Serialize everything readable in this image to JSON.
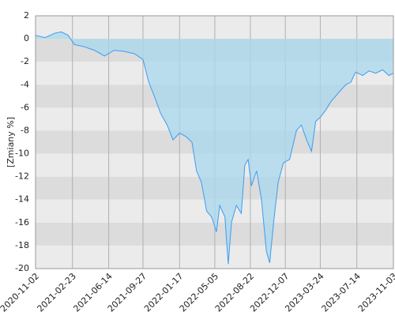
{
  "chart_data": {
    "type": "area",
    "y_label": "[Zmiany %]",
    "color": "#3f9bef",
    "fill": "#a8d8ee",
    "x": [
      "2020-11-02",
      "2020-12-01",
      "2021-01-01",
      "2021-01-20",
      "2021-02-10",
      "2021-03-01",
      "2021-04-01",
      "2021-05-01",
      "2021-06-01",
      "2021-07-01",
      "2021-08-01",
      "2021-09-01",
      "2021-09-27",
      "2021-10-15",
      "2021-11-01",
      "2021-11-20",
      "2021-12-10",
      "2021-12-28",
      "2022-01-17",
      "2022-02-05",
      "2022-02-24",
      "2022-03-10",
      "2022-03-25",
      "2022-04-10",
      "2022-04-25",
      "2022-05-10",
      "2022-05-20",
      "2022-06-05",
      "2022-06-15",
      "2022-06-25",
      "2022-07-10",
      "2022-07-25",
      "2022-08-05",
      "2022-08-15",
      "2022-08-25",
      "2022-09-10",
      "2022-09-25",
      "2022-10-10",
      "2022-10-20",
      "2022-11-01",
      "2022-11-15",
      "2022-12-01",
      "2022-12-20",
      "2023-01-10",
      "2023-01-25",
      "2023-02-10",
      "2023-02-25",
      "2023-03-10",
      "2023-03-25",
      "2023-04-10",
      "2023-04-25",
      "2023-05-10",
      "2023-05-25",
      "2023-06-10",
      "2023-06-25",
      "2023-07-10",
      "2023-08-01",
      "2023-08-20",
      "2023-09-10",
      "2023-10-01",
      "2023-10-20",
      "2023-11-03"
    ],
    "values": [
      0.3,
      0.1,
      0.5,
      0.6,
      0.3,
      -0.5,
      -0.7,
      -1.0,
      -1.5,
      -1.0,
      -1.1,
      -1.3,
      -1.8,
      -3.8,
      -5.0,
      -6.5,
      -7.5,
      -8.8,
      -8.2,
      -8.5,
      -9.0,
      -11.5,
      -12.5,
      -15.0,
      -15.5,
      -16.8,
      -14.5,
      -15.5,
      -19.6,
      -16.0,
      -14.5,
      -15.2,
      -11.0,
      -10.5,
      -12.8,
      -11.5,
      -14.0,
      -18.5,
      -19.5,
      -16.0,
      -12.5,
      -10.8,
      -10.5,
      -8.0,
      -7.5,
      -8.8,
      -9.8,
      -7.2,
      -6.8,
      -6.2,
      -5.5,
      -5.0,
      -4.5,
      -4.0,
      -3.8,
      -2.9,
      -3.2,
      -2.8,
      -3.0,
      -2.7,
      -3.2,
      -3.0
    ],
    "xlim": [
      "2020-11-02",
      "2023-11-03"
    ],
    "xticks": [
      "2020-11-02",
      "2021-02-23",
      "2021-06-14",
      "2021-09-27",
      "2022-01-17",
      "2022-05-05",
      "2022-08-22",
      "2022-12-07",
      "2023-03-24",
      "2023-07-14",
      "2023-11-03"
    ],
    "ylim": [
      -20,
      2
    ],
    "yticks": [
      2,
      0,
      -2,
      -4,
      -6,
      -8,
      -10,
      -12,
      -14,
      -16,
      -18,
      -20
    ],
    "grid": true
  }
}
